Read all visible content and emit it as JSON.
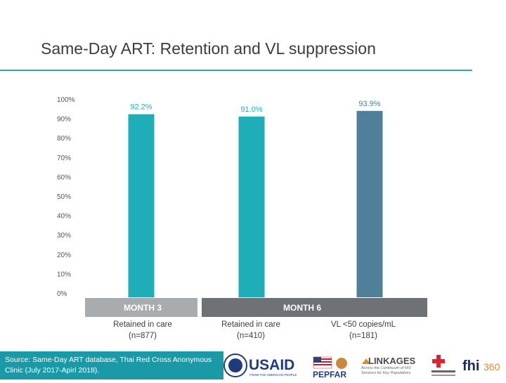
{
  "slide": {
    "title": "Same-Day ART: Retention and VL suppression",
    "source": "Source: Same-Day ART database, Thai Red Cross Anonymous Clinic (July 2017-Apirl 2018)."
  },
  "chart_data": {
    "type": "bar",
    "categories": [
      "Retained in care (n=877)",
      "Retained in care (n=410)",
      "VL <50 copies/mL (n=181)"
    ],
    "category_lines": [
      [
        "Retained in care",
        "(n=877)"
      ],
      [
        "Retained in care",
        "(n=410)"
      ],
      [
        "VL <50 copies/mL",
        "(n=181)"
      ]
    ],
    "groups": [
      {
        "label": "MONTH 3",
        "categories": [
          0
        ]
      },
      {
        "label": "MONTH 6",
        "categories": [
          1,
          2
        ]
      }
    ],
    "values": [
      92.2,
      91.0,
      93.9
    ],
    "value_labels": [
      "92.2%",
      "91.0%",
      "93.9%"
    ],
    "bar_colors": [
      "#1fadb8",
      "#1fadb8",
      "#4f7f99"
    ],
    "ylim": [
      0,
      100
    ],
    "yticks": [
      0,
      10,
      20,
      30,
      40,
      50,
      60,
      70,
      80,
      90,
      100
    ],
    "ytick_labels": [
      "0%",
      "10%",
      "20%",
      "30%",
      "40%",
      "50%",
      "60%",
      "70%",
      "80%",
      "90%",
      "100%"
    ],
    "grid": false,
    "legend": "none"
  },
  "logos": {
    "usaid": "USAID",
    "usaid_tagline": "FROM THE AMERICAN PEOPLE",
    "pepfar": "PEPFAR",
    "linkages": "LINKAGES",
    "linkages_tagline": "Across the Continuum of HIV Services for Key Populations",
    "fhi": "fhi",
    "fhi_num": "360"
  },
  "colors": {
    "accent": "#2aa8b4",
    "bar_teal": "#1fadb8",
    "bar_blue": "#4f7f99",
    "band_light": "#a9acae",
    "band_dark": "#6e7277",
    "footer_bg": "#1a9aa6"
  }
}
